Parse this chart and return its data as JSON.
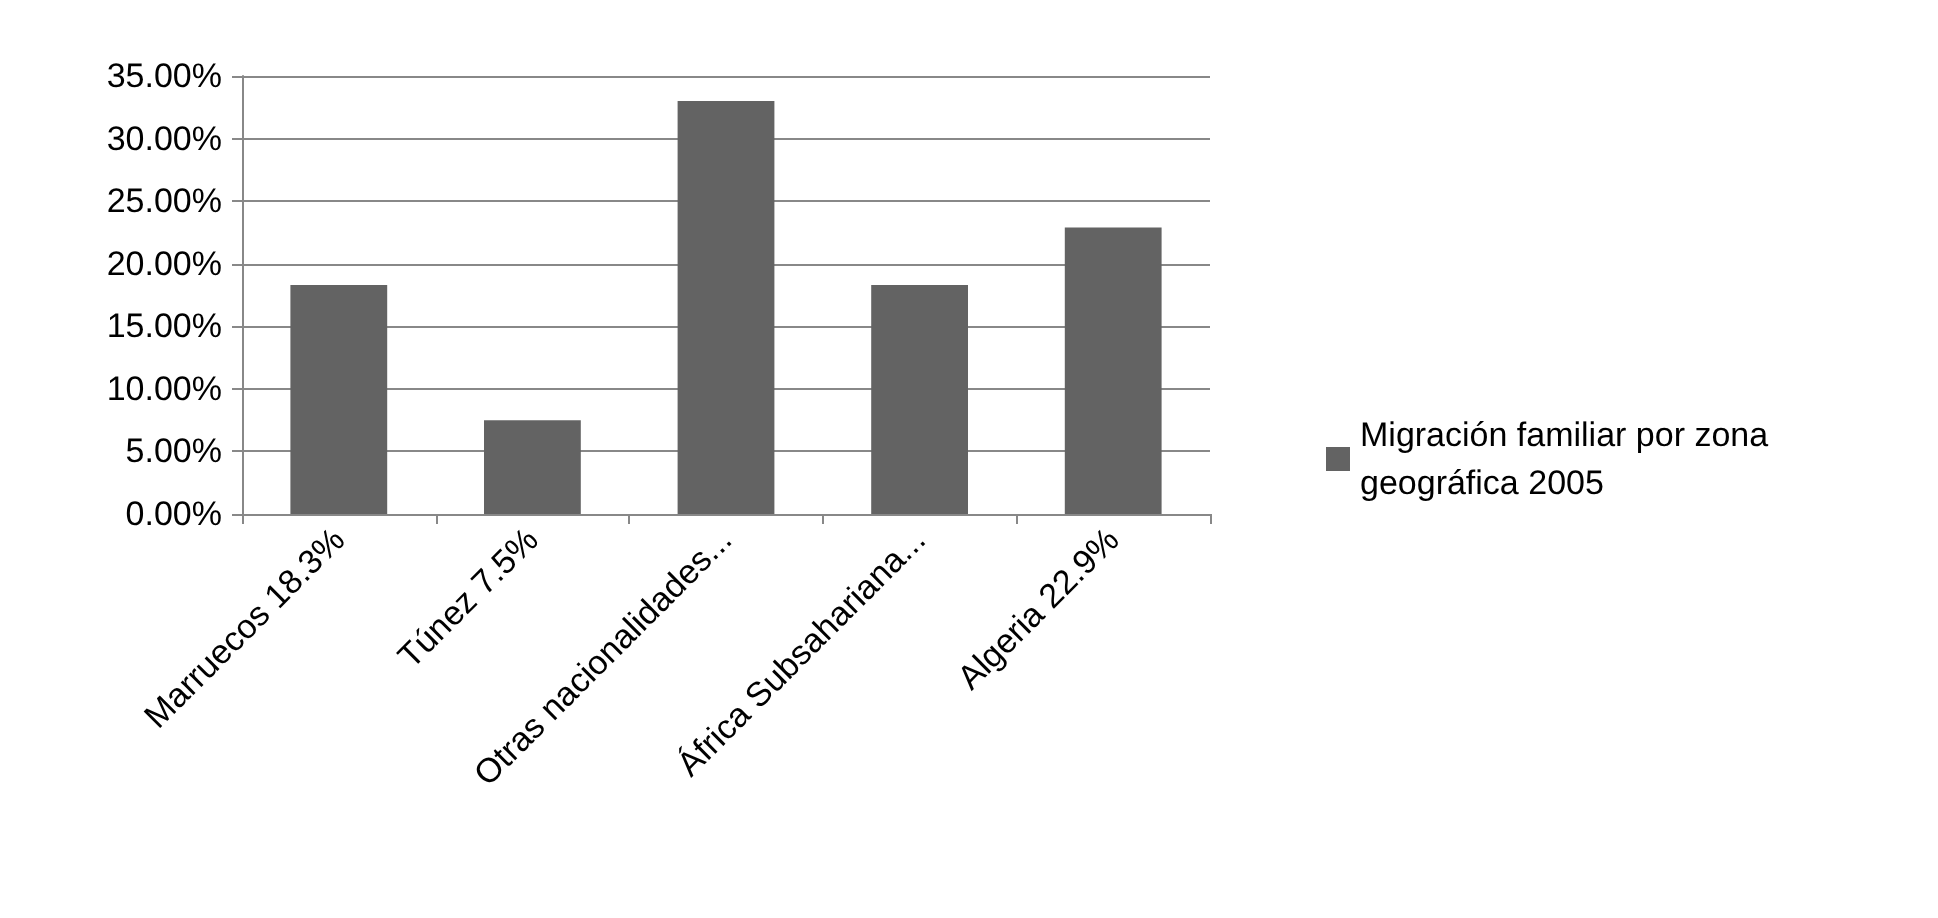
{
  "chart_data": {
    "type": "bar",
    "categories": [
      "Marruecos 18.3%",
      "Túnez 7.5%",
      "Otras nacionalidades...",
      "África Subsahariana...",
      "Algeria 22.9%"
    ],
    "series": [
      {
        "name": "Migración familiar por zona geográfica 2005",
        "color": "#636363",
        "values": [
          18.3,
          7.5,
          33.0,
          18.3,
          22.9
        ]
      }
    ],
    "ylim": [
      0,
      35
    ],
    "yticks": [
      {
        "value": 0,
        "label": "0.00%"
      },
      {
        "value": 5,
        "label": "5.00%"
      },
      {
        "value": 10,
        "label": "10.00%"
      },
      {
        "value": 15,
        "label": "15.00%"
      },
      {
        "value": 20,
        "label": "20.00%"
      },
      {
        "value": 25,
        "label": "25.00%"
      },
      {
        "value": 30,
        "label": "30.00%"
      },
      {
        "value": 35,
        "label": "35.00%"
      }
    ],
    "grid": true,
    "legend": "right"
  }
}
